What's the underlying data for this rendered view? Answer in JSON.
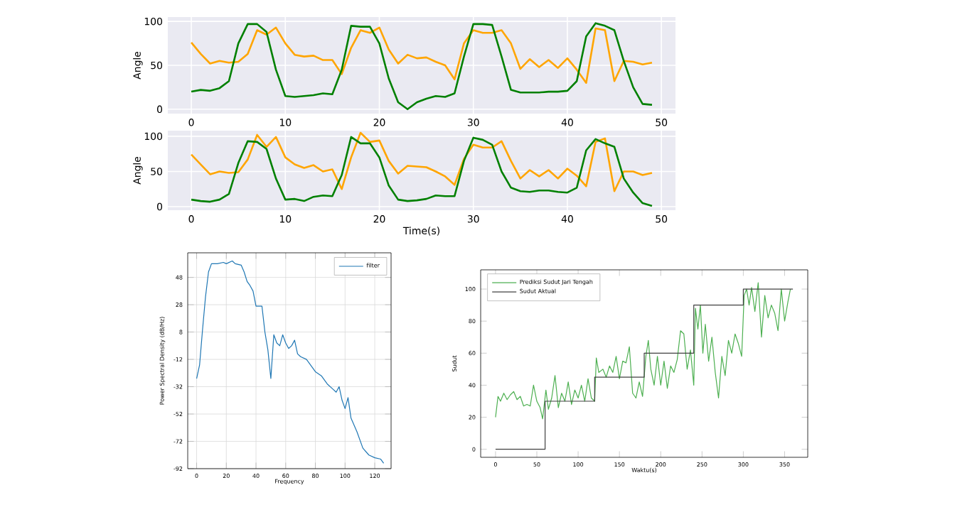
{
  "chart_data": [
    {
      "type": "line",
      "ylabel": "Angle",
      "x": [
        0,
        1,
        2,
        3,
        4,
        5,
        6,
        7,
        8,
        9,
        10,
        11,
        12,
        13,
        14,
        15,
        16,
        17,
        18,
        19,
        20,
        21,
        22,
        23,
        24,
        25,
        26,
        27,
        28,
        29,
        30,
        31,
        32,
        33,
        34,
        35,
        36,
        37,
        38,
        39,
        40,
        41,
        42,
        43,
        44,
        45,
        46,
        47,
        48,
        49
      ],
      "xlim": [
        -2.5,
        51.5
      ],
      "ylim": [
        -5,
        105
      ],
      "xticks": [
        0,
        10,
        20,
        30,
        40,
        50
      ],
      "yticks": [
        0,
        50,
        100
      ],
      "grid": true,
      "series": [
        {
          "color": "#ffa500",
          "values": [
            76,
            63,
            52,
            55,
            53,
            54,
            63,
            90,
            85,
            93,
            75,
            62,
            60,
            61,
            56,
            56,
            40,
            70,
            90,
            87,
            93,
            68,
            52,
            62,
            58,
            59,
            54,
            50,
            34,
            75,
            90,
            87,
            87,
            90,
            75,
            46,
            57,
            48,
            56,
            47,
            58,
            45,
            30,
            92,
            90,
            32,
            55,
            54,
            51,
            53
          ]
        },
        {
          "color": "#008000",
          "values": [
            20,
            22,
            21,
            24,
            32,
            75,
            97,
            97,
            88,
            45,
            15,
            14,
            15,
            16,
            18,
            17,
            45,
            95,
            94,
            94,
            75,
            35,
            8,
            0,
            8,
            12,
            15,
            14,
            18,
            60,
            97,
            97,
            96,
            60,
            22,
            19,
            19,
            19,
            20,
            20,
            21,
            32,
            83,
            98,
            95,
            90,
            55,
            25,
            6,
            5
          ]
        }
      ]
    },
    {
      "type": "line",
      "ylabel": "Angle",
      "xlabel": "Time(s)",
      "x": [
        0,
        1,
        2,
        3,
        4,
        5,
        6,
        7,
        8,
        9,
        10,
        11,
        12,
        13,
        14,
        15,
        16,
        17,
        18,
        19,
        20,
        21,
        22,
        23,
        24,
        25,
        26,
        27,
        28,
        29,
        30,
        31,
        32,
        33,
        34,
        35,
        36,
        37,
        38,
        39,
        40,
        41,
        42,
        43,
        44,
        45,
        46,
        47,
        48,
        49
      ],
      "xlim": [
        -2.5,
        51.5
      ],
      "ylim": [
        -5,
        108
      ],
      "xticks": [
        0,
        10,
        20,
        30,
        40,
        50
      ],
      "yticks": [
        0,
        50,
        100
      ],
      "grid": true,
      "series": [
        {
          "color": "#ffa500",
          "values": [
            74,
            60,
            46,
            50,
            48,
            49,
            67,
            102,
            85,
            99,
            70,
            60,
            55,
            59,
            50,
            53,
            25,
            70,
            105,
            92,
            94,
            65,
            47,
            58,
            57,
            56,
            50,
            43,
            31,
            68,
            88,
            84,
            84,
            93,
            65,
            40,
            52,
            43,
            52,
            40,
            54,
            44,
            29,
            92,
            97,
            22,
            50,
            50,
            45,
            48
          ]
        },
        {
          "color": "#008000",
          "values": [
            10,
            8,
            7,
            10,
            18,
            62,
            93,
            92,
            82,
            40,
            10,
            11,
            8,
            14,
            16,
            15,
            45,
            99,
            90,
            90,
            70,
            30,
            10,
            8,
            9,
            11,
            16,
            15,
            15,
            65,
            98,
            95,
            88,
            50,
            27,
            22,
            21,
            23,
            23,
            21,
            20,
            27,
            80,
            96,
            90,
            85,
            40,
            20,
            5,
            1
          ]
        }
      ]
    },
    {
      "type": "line",
      "xlabel": "Frequency",
      "ylabel": "Power Spectral Density (dB/Hz)",
      "xlim": [
        -6,
        131
      ],
      "ylim": [
        -92,
        66
      ],
      "xticks": [
        0,
        20,
        40,
        60,
        80,
        100,
        120
      ],
      "yticks": [
        -92,
        -72,
        -52,
        -32,
        -12,
        8,
        28,
        48
      ],
      "grid": true,
      "legend": "top right",
      "series": [
        {
          "name": "filter",
          "color": "#1f77b4",
          "x": [
            0,
            2,
            4,
            6,
            8,
            10,
            14,
            18,
            20,
            24,
            26,
            30,
            32,
            34,
            36,
            38,
            40,
            42,
            44,
            46,
            48,
            50,
            52,
            54,
            56,
            58,
            60,
            62,
            64,
            66,
            68,
            70,
            74,
            78,
            80,
            84,
            88,
            92,
            94,
            96,
            98,
            100,
            102,
            104,
            108,
            112,
            116,
            120,
            124,
            126
          ],
          "values": [
            -26,
            -16,
            10,
            34,
            52,
            58,
            58,
            59,
            58,
            60,
            58,
            57,
            52,
            45,
            42,
            38,
            27,
            27,
            27,
            8,
            -5,
            -26,
            6,
            0,
            -2,
            6,
            0,
            -4,
            -2,
            2,
            -8,
            -10,
            -12,
            -18,
            -21,
            -24,
            -30,
            -34,
            -36,
            -32,
            -42,
            -48,
            -40,
            -55,
            -65,
            -77,
            -82,
            -84,
            -85,
            -88
          ]
        }
      ]
    },
    {
      "type": "line",
      "xlabel": "Waktu(s)",
      "ylabel": "Sudut",
      "xlim": [
        -18,
        378
      ],
      "ylim": [
        -5,
        112
      ],
      "xticks": [
        0,
        50,
        100,
        150,
        200,
        250,
        300,
        350
      ],
      "yticks": [
        0,
        20,
        40,
        60,
        80,
        100
      ],
      "legend": "top left",
      "series": [
        {
          "name": "Prediksi Sudut Jari Tengah",
          "color": "#4caf50",
          "x": [
            0,
            3,
            6,
            10,
            14,
            18,
            22,
            26,
            30,
            34,
            38,
            42,
            46,
            50,
            54,
            57,
            61,
            64,
            68,
            72,
            76,
            80,
            84,
            88,
            92,
            96,
            100,
            104,
            108,
            112,
            116,
            120,
            122,
            125,
            130,
            134,
            138,
            142,
            146,
            150,
            154,
            158,
            162,
            166,
            170,
            174,
            178,
            182,
            185,
            188,
            192,
            196,
            200,
            204,
            208,
            212,
            216,
            220,
            224,
            228,
            232,
            236,
            240,
            242,
            245,
            248,
            251,
            254,
            258,
            262,
            266,
            270,
            274,
            278,
            282,
            286,
            290,
            294,
            298,
            301,
            304,
            307,
            310,
            314,
            318,
            322,
            326,
            330,
            334,
            338,
            342,
            346,
            350,
            354,
            357
          ],
          "values": [
            20,
            33,
            30,
            35,
            31,
            34,
            36,
            31,
            33,
            27,
            28,
            27,
            40,
            30,
            26,
            19,
            37,
            25,
            32,
            46,
            26,
            35,
            30,
            42,
            28,
            37,
            32,
            40,
            30,
            44,
            32,
            30,
            57,
            48,
            50,
            45,
            52,
            48,
            58,
            44,
            55,
            54,
            64,
            35,
            32,
            42,
            33,
            58,
            68,
            50,
            40,
            58,
            40,
            55,
            38,
            52,
            48,
            56,
            74,
            72,
            50,
            62,
            40,
            88,
            75,
            90,
            60,
            78,
            55,
            70,
            48,
            32,
            58,
            46,
            68,
            60,
            72,
            66,
            58,
            96,
            100,
            90,
            101,
            86,
            104,
            70,
            96,
            82,
            90,
            85,
            74,
            100,
            80,
            92,
            100
          ]
        },
        {
          "name": "Sudut Aktual",
          "type": "step",
          "color": "#404040",
          "x": [
            0,
            60,
            120,
            180,
            240,
            300,
            360
          ],
          "values": [
            0,
            30,
            45,
            60,
            90,
            100,
            100
          ]
        }
      ]
    }
  ]
}
